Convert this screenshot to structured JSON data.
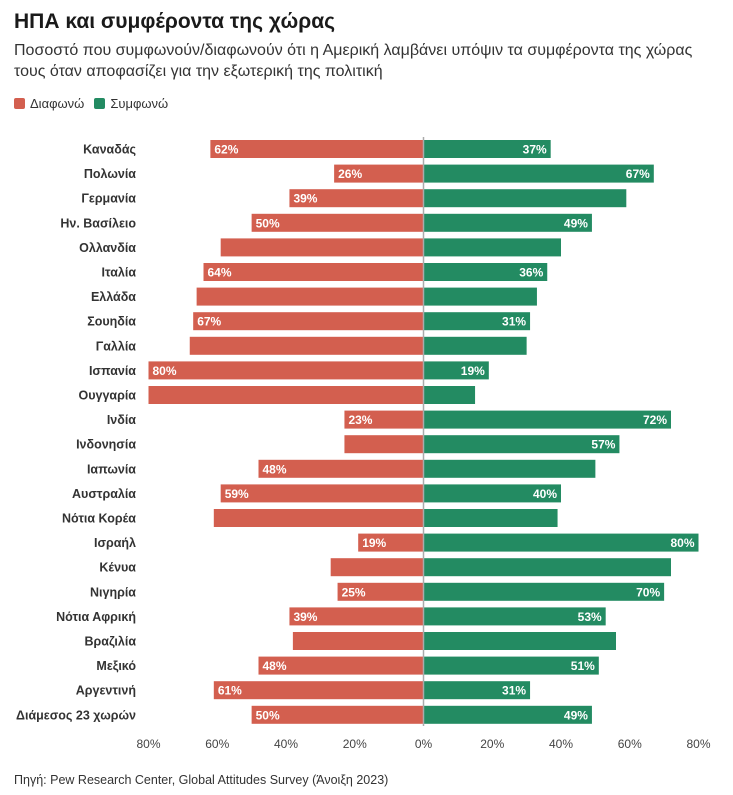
{
  "title": "ΗΠΑ και συμφέροντα της χώρας",
  "subtitle": "Ποσοστό που συμφωνούν/διαφωνούν ότι η Αμερική λαμβάνει υπόψιν τα συμφέροντα της χώρας τους όταν αποφασίζει για την εξωτερική της πολιτική",
  "source": "Πηγή: Pew Research Center, Global Attitudes Survey (Άνοιξη 2023)",
  "colors": {
    "disagree": "#d35f4f",
    "agree": "#238b62",
    "axis": "#aaaaaa"
  },
  "chart_data": {
    "type": "bar",
    "orientation": "horizontal-diverging",
    "legend": [
      "Διαφωνώ",
      "Συμφωνώ"
    ],
    "xlim": [
      -80,
      80
    ],
    "ticks": [
      "80%",
      "60%",
      "40%",
      "20%",
      "0%",
      "20%",
      "40%",
      "60%",
      "80%"
    ],
    "categories": [
      "Καναδάς",
      "Πολωνία",
      "Γερμανία",
      "Ην. Βασίλειο",
      "Ολλανδία",
      "Ιταλία",
      "Ελλάδα",
      "Σουηδία",
      "Γαλλία",
      "Ισπανία",
      "Ουγγαρία",
      "Ινδία",
      "Ινδονησία",
      "Ιαπωνία",
      "Αυστραλία",
      "Νότια Κορέα",
      "Ισραήλ",
      "Κένυα",
      "Νιγηρία",
      "Νότια Αφρική",
      "Βραζιλία",
      "Μεξικό",
      "Αργεντινή",
      "Διάμεσος 23 χωρών"
    ],
    "series": [
      {
        "name": "Διαφωνώ",
        "values": [
          62,
          26,
          39,
          50,
          59,
          64,
          66,
          67,
          68,
          80,
          80,
          23,
          23,
          48,
          59,
          61,
          19,
          27,
          25,
          39,
          38,
          48,
          61,
          50
        ],
        "labels": [
          "62%",
          "26%",
          "39%",
          "50%",
          "",
          "64%",
          "",
          "67%",
          "",
          "80%",
          "",
          "23%",
          "",
          "48%",
          "59%",
          "",
          "19%",
          "",
          "25%",
          "39%",
          "",
          "48%",
          "61%",
          "50%"
        ]
      },
      {
        "name": "Συμφωνώ",
        "values": [
          37,
          67,
          59,
          49,
          40,
          36,
          33,
          31,
          30,
          19,
          15,
          72,
          57,
          50,
          40,
          39,
          80,
          72,
          70,
          53,
          56,
          51,
          31,
          49
        ],
        "labels": [
          "37%",
          "67%",
          "",
          "49%",
          "",
          "36%",
          "",
          "31%",
          "",
          "19%",
          "",
          "72%",
          "57%",
          "",
          "40%",
          "",
          "80%",
          "",
          "70%",
          "53%",
          "",
          "51%",
          "31%",
          "49%"
        ]
      }
    ]
  }
}
